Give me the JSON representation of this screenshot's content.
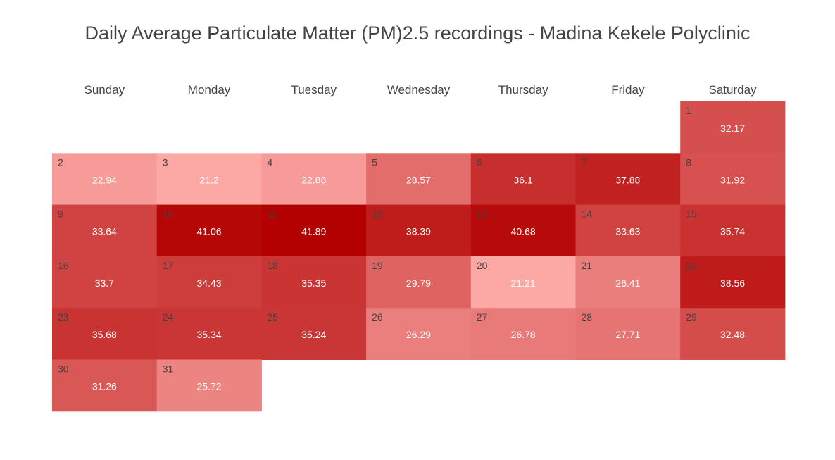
{
  "title": "Daily Average Particulate Matter (PM)2.5 recordings - Madina Kekele Polyclinic",
  "chart_data": {
    "type": "heatmap",
    "title": "Daily Average Particulate Matter (PM)2.5 recordings - Madina Kekele Polyclinic",
    "weekdays": [
      "Sunday",
      "Monday",
      "Tuesday",
      "Wednesday",
      "Thursday",
      "Friday",
      "Saturday"
    ],
    "first_weekday_index": 6,
    "days": [
      1,
      2,
      3,
      4,
      5,
      6,
      7,
      8,
      9,
      10,
      11,
      12,
      13,
      14,
      15,
      16,
      17,
      18,
      19,
      20,
      21,
      22,
      23,
      24,
      25,
      26,
      27,
      28,
      29,
      30,
      31
    ],
    "values": [
      32.17,
      22.94,
      21.2,
      22.88,
      28.57,
      36.1,
      37.88,
      31.92,
      33.64,
      41.06,
      41.89,
      38.39,
      40.68,
      33.63,
      35.74,
      33.7,
      34.43,
      35.35,
      29.79,
      21.21,
      26.41,
      38.56,
      35.68,
      35.34,
      35.24,
      26.29,
      26.78,
      27.71,
      32.48,
      31.26,
      25.72
    ],
    "value_labels": [
      "32.17",
      "22.94",
      "21.2",
      "22.88",
      "28.57",
      "36.1",
      "37.88",
      "31.92",
      "33.64",
      "41.06",
      "41.89",
      "38.39",
      "40.68",
      "33.63",
      "35.74",
      "33.7",
      "34.43",
      "35.35",
      "29.79",
      "21.21",
      "26.41",
      "38.56",
      "35.68",
      "35.34",
      "35.24",
      "26.29",
      "26.78",
      "27.71",
      "32.48",
      "31.26",
      "25.72"
    ],
    "color_scale": {
      "low": "#fca9a6",
      "high": "#b30000"
    },
    "value_range": [
      21.2,
      41.89
    ]
  }
}
